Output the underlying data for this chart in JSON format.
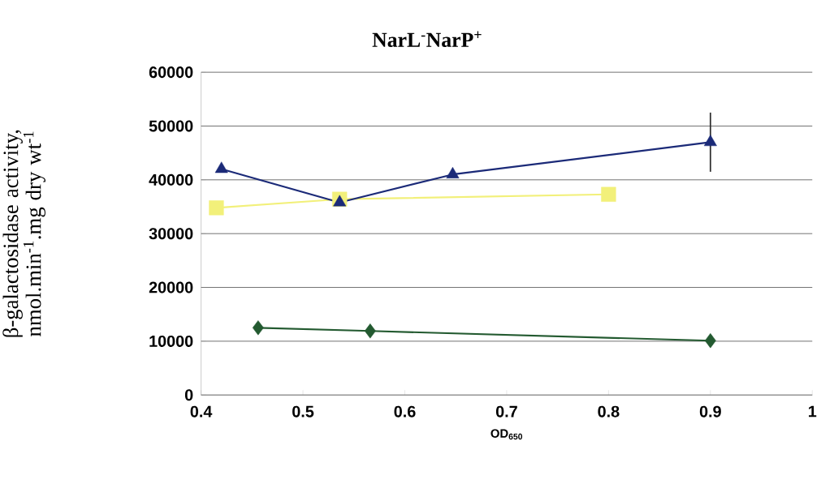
{
  "chart_data": {
    "type": "line",
    "title": "NarL$^{-}$NarP$^{+}$",
    "xlabel": "OD$_{650}$",
    "ylabel": "β-galactosidase activity, nmol.min$^{-1}$.mg dry wt$^{-1}$",
    "xlim": [
      0.4,
      1
    ],
    "xticks": [
      0.4,
      0.5,
      0.6,
      0.7,
      0.8,
      0.9,
      1
    ],
    "ylim": [
      0,
      60000
    ],
    "yticks": [
      0,
      10000,
      20000,
      30000,
      40000,
      50000,
      60000
    ],
    "grid": "y",
    "line_style": "solid",
    "series": [
      {
        "color": "#1b2a78",
        "marker": "triangle",
        "x": [
          0.42,
          0.536,
          0.647,
          0.9
        ],
        "values": [
          42000,
          35800,
          41000,
          47000
        ],
        "errors": [
          null,
          null,
          null,
          5500
        ]
      },
      {
        "color": "#f2f07a",
        "marker": "square",
        "x": [
          0.415,
          0.536,
          0.8
        ],
        "values": [
          34800,
          36400,
          37300
        ]
      },
      {
        "color": "#235a30",
        "marker": "diamond",
        "x": [
          0.456,
          0.566,
          0.9
        ],
        "values": [
          12500,
          11900,
          10100
        ]
      }
    ]
  }
}
